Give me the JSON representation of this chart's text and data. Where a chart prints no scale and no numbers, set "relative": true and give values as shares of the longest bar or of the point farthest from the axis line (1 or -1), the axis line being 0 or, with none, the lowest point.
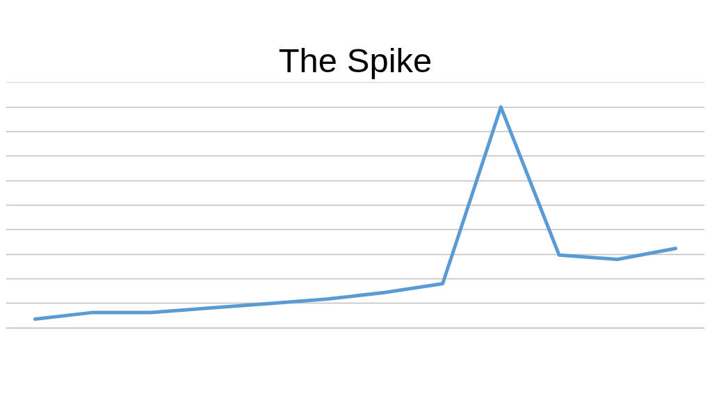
{
  "chart_data": {
    "type": "line",
    "title": "The Spike",
    "relative": true,
    "grid": "y",
    "categories": [
      null,
      null,
      null,
      null,
      null,
      null,
      null,
      null,
      null,
      null,
      null,
      null
    ],
    "series": [
      {
        "color": "#5b9bd5",
        "values": [
          0.04,
          0.07,
          0.07,
          0.09,
          0.11,
          0.13,
          0.16,
          0.2,
          1,
          0.33,
          0.31,
          0.36
        ]
      }
    ]
  }
}
